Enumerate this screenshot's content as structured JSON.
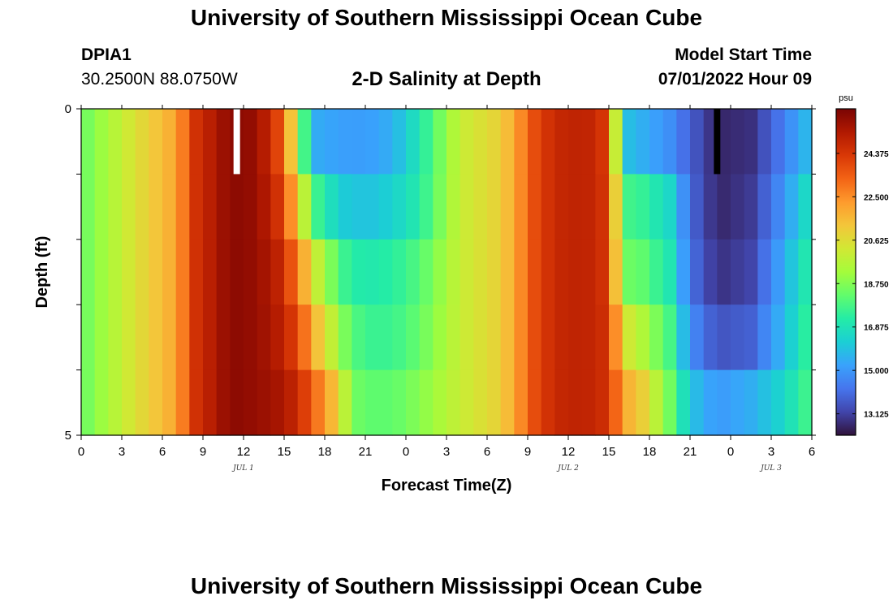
{
  "header": {
    "title": "University of Southern Mississippi Ocean Cube",
    "station_id": "DPIA1",
    "coordinates": "30.2500N  88.0750W",
    "subtitle": "2-D Salinity at Depth",
    "model_start_label": "Model Start Time",
    "model_start_value": "07/01/2022 Hour 09"
  },
  "footer": {
    "title": "University of Southern Mississippi Ocean Cube"
  },
  "colors": {
    "scale": [
      "#30123b",
      "#4145ab",
      "#4675ed",
      "#39a2fc",
      "#1bcfd4",
      "#24eca6",
      "#61fc6c",
      "#a4fc3b",
      "#d1e834",
      "#f3c63a",
      "#fe9b2d",
      "#f36315",
      "#d93806",
      "#b11901",
      "#7a0403"
    ],
    "now_marker": "#ffffff",
    "start_marker": "#000000"
  },
  "chart_data": {
    "type": "heatmap",
    "title": "2-D Salinity at Depth",
    "xlabel": "Forecast Time(Z)",
    "ylabel": "Depth (ft)",
    "x_hours": 54,
    "x_tick_labels": [
      "0",
      "3",
      "6",
      "9",
      "12",
      "15",
      "18",
      "21",
      "0",
      "3",
      "6",
      "9",
      "12",
      "15",
      "18",
      "21",
      "0",
      "3",
      "6"
    ],
    "date_labels": [
      {
        "label": "JUL 1",
        "hour": 12
      },
      {
        "label": "JUL 2",
        "hour": 36
      },
      {
        "label": "JUL 3",
        "hour": 51
      }
    ],
    "y_range": [
      0,
      5
    ],
    "y_tick_labels": [
      "0",
      "5"
    ],
    "depth_levels": 5,
    "colorbar": {
      "unit": "psu",
      "min": 12.2,
      "max": 26.3,
      "tick_values": [
        13.125,
        15.0,
        16.875,
        18.75,
        20.625,
        22.5,
        24.375
      ],
      "tick_labels": [
        "13.125",
        "15.000",
        "16.875",
        "18.750",
        "20.625",
        "22.500",
        "24.375"
      ]
    },
    "markers": [
      {
        "name": "current-time",
        "hour": 11.5
      },
      {
        "name": "model-start",
        "hour": 47
      }
    ],
    "keyframes_hour": [
      0,
      4,
      7,
      8.5,
      11,
      13,
      14.5,
      16,
      17,
      19,
      20,
      21.5,
      23,
      25,
      28,
      31,
      32,
      33.5,
      35,
      37,
      38,
      39,
      40,
      41.5,
      43.5,
      45,
      47,
      49.5,
      52,
      54
    ],
    "salinity_by_depth": [
      [
        18.3,
        20.5,
        22.0,
        24.5,
        26.0,
        25.8,
        24.0,
        20.0,
        15.5,
        15.2,
        15.1,
        15.2,
        15.5,
        17.0,
        20.0,
        21.0,
        22.0,
        23.8,
        24.8,
        25.0,
        24.8,
        24.0,
        16.0,
        15.5,
        14.8,
        13.8,
        12.6,
        12.8,
        14.5,
        16.0
      ],
      [
        18.3,
        20.5,
        22.0,
        24.5,
        26.0,
        25.8,
        24.5,
        21.5,
        18.0,
        16.3,
        16.0,
        16.0,
        16.3,
        17.2,
        20.0,
        21.0,
        22.0,
        23.8,
        24.8,
        25.0,
        24.8,
        24.2,
        17.8,
        17.5,
        16.5,
        14.0,
        12.6,
        13.0,
        15.0,
        17.0
      ],
      [
        18.3,
        20.5,
        22.0,
        24.5,
        26.0,
        25.8,
        25.0,
        23.0,
        20.5,
        18.0,
        17.2,
        17.1,
        17.3,
        18.0,
        20.0,
        21.0,
        22.0,
        23.8,
        24.8,
        25.0,
        24.8,
        24.3,
        18.5,
        18.2,
        17.0,
        14.2,
        12.8,
        13.2,
        15.5,
        17.5
      ],
      [
        18.3,
        20.5,
        22.0,
        24.5,
        26.0,
        25.8,
        25.2,
        24.0,
        22.0,
        19.2,
        18.0,
        17.6,
        17.6,
        18.3,
        20.0,
        21.0,
        22.0,
        23.8,
        24.8,
        25.0,
        24.8,
        24.5,
        20.5,
        19.5,
        17.8,
        14.8,
        13.5,
        13.8,
        15.8,
        17.8
      ],
      [
        18.3,
        20.5,
        22.0,
        24.5,
        26.0,
        25.8,
        25.5,
        24.8,
        23.5,
        21.0,
        18.5,
        18.2,
        18.2,
        18.8,
        20.0,
        21.0,
        22.0,
        23.8,
        24.8,
        25.0,
        24.8,
        24.5,
        22.0,
        21.0,
        18.5,
        16.0,
        15.0,
        15.5,
        16.5,
        18.0
      ]
    ]
  }
}
